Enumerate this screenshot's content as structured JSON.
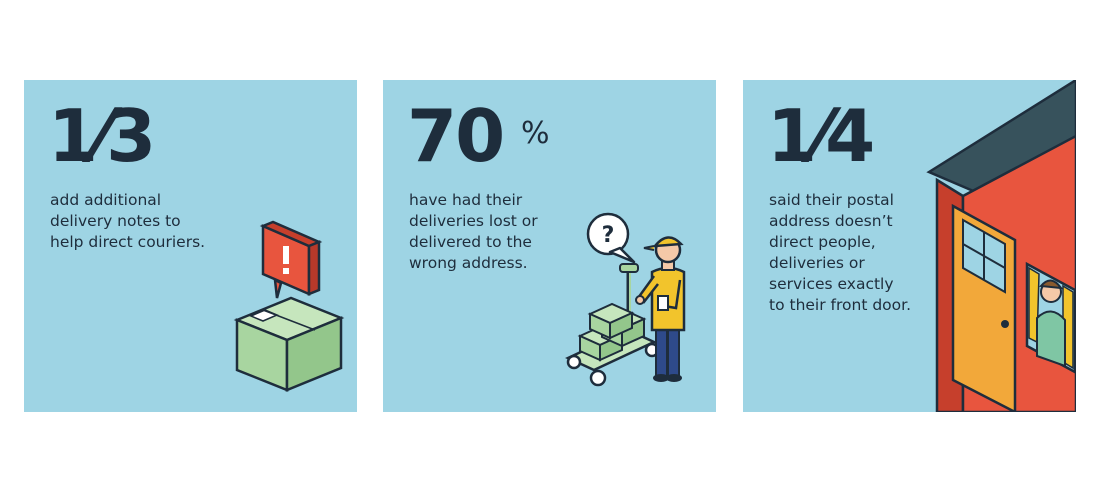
{
  "colors": {
    "card_bg": "#9ed4e4",
    "text": "#1e2d3c",
    "alert_red": "#e8553e",
    "box_green": "#a8d5a0",
    "shirt_yellow": "#f2c42c",
    "roof": "#37525c",
    "wall": "#e8553e",
    "door": "#f2a83a"
  },
  "cards": [
    {
      "stat": "1⁄3",
      "lines": [
        "add additional",
        "delivery notes to",
        "help direct couriers."
      ],
      "illustration": "parcel-with-alert-icon"
    },
    {
      "stat": "70",
      "unit": "%",
      "lines": [
        "have had their",
        "deliveries lost or",
        "delivered to the",
        "wrong address."
      ],
      "illustration": "courier-with-trolley-question-icon",
      "bubble_text": "?"
    },
    {
      "stat": "1⁄4",
      "lines": [
        "said their postal",
        "address doesn’t",
        "direct people,",
        "deliveries or",
        "services exactly",
        "to their front door."
      ],
      "illustration": "house-with-door-and-window-icon"
    }
  ]
}
